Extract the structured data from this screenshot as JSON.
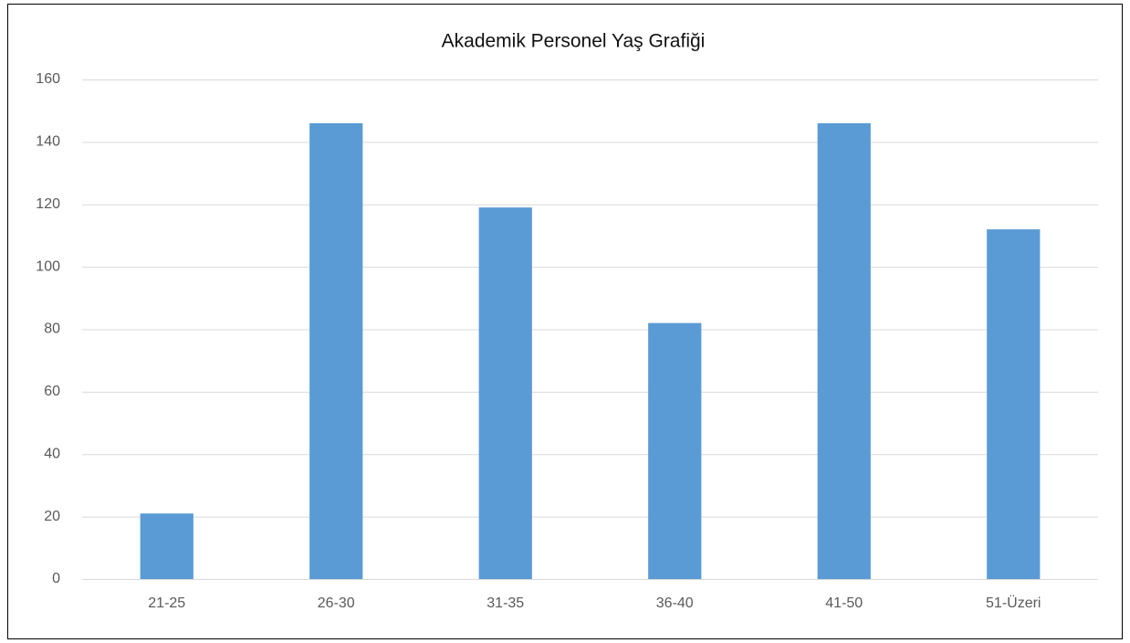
{
  "chart_data": {
    "type": "bar",
    "title": "Akademik Personel Yaş Grafiği",
    "categories": [
      "21-25",
      "26-30",
      "31-35",
      "36-40",
      "41-50",
      "51-Üzeri"
    ],
    "values": [
      21,
      146,
      119,
      82,
      146,
      112
    ],
    "color": "#5b9bd5",
    "ylim": [
      0,
      160
    ],
    "yticks": [
      0,
      20,
      40,
      60,
      80,
      100,
      120,
      140,
      160
    ],
    "grid": true
  }
}
